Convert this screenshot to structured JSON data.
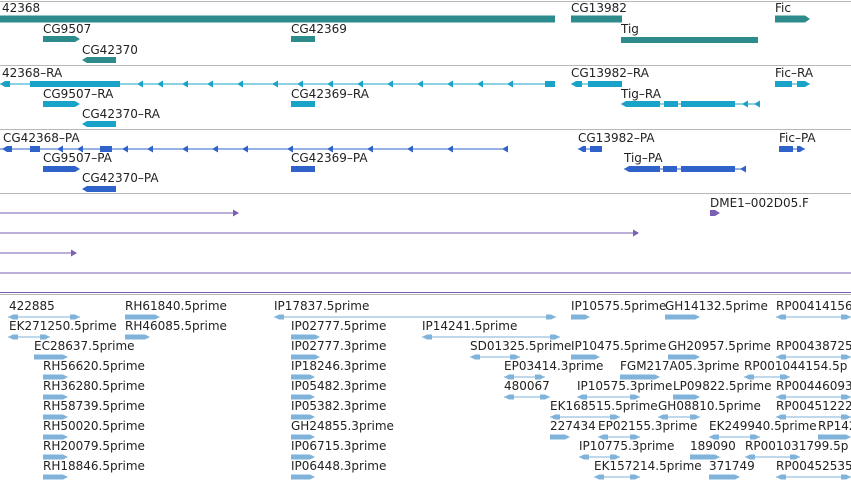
{
  "colors": {
    "gene": "#2e8b8b",
    "transcript": "#1aa3c8",
    "protein": "#2f63c9",
    "clone": "#7a5fb5",
    "est": "#7fb3d9",
    "divider": "#b8b8b8"
  },
  "tracks": {
    "genes": {
      "features": [
        {
          "label": "42368"
        },
        {
          "label": "CG9507"
        },
        {
          "label": "CG42370"
        },
        {
          "label": "CG42369"
        },
        {
          "label": "CG13982"
        },
        {
          "label": "Tig"
        },
        {
          "label": "Fic"
        }
      ]
    },
    "transcripts": {
      "features": [
        {
          "label": "42368–RA"
        },
        {
          "label": "CG9507–RA"
        },
        {
          "label": "CG42370–RA"
        },
        {
          "label": "CG42369–RA"
        },
        {
          "label": "CG13982–RA"
        },
        {
          "label": "Tig–RA"
        },
        {
          "label": "Fic–RA"
        }
      ]
    },
    "proteins": {
      "features": [
        {
          "label": "CG42368–PA"
        },
        {
          "label": "CG9507–PA"
        },
        {
          "label": "CG42370–PA"
        },
        {
          "label": "CG42369–PA"
        },
        {
          "label": "CG13982–PA"
        },
        {
          "label": "Tig–PA"
        },
        {
          "label": "Fic–PA"
        }
      ]
    },
    "clones": {
      "features": [
        {
          "label": "DME1–002D05.F"
        }
      ]
    },
    "ests": {
      "features": [
        {
          "label": "422885"
        },
        {
          "label": "RH61840.5prime"
        },
        {
          "label": "IP17837.5prime"
        },
        {
          "label": "IP10575.5prime"
        },
        {
          "label": "GH14132.5prime"
        },
        {
          "label": "RP00414156"
        },
        {
          "label": "EK271250.5prime"
        },
        {
          "label": "RH46085.5prime"
        },
        {
          "label": "IP02777.5prime"
        },
        {
          "label": "IP14241.5prime"
        },
        {
          "label": "EC28637.5prime"
        },
        {
          "label": "IP02777.3prime"
        },
        {
          "label": "SD01325.5prime"
        },
        {
          "label": "IP10475.5prime"
        },
        {
          "label": "GH20957.5prime"
        },
        {
          "label": "RP00438725"
        },
        {
          "label": "RH56620.5prime"
        },
        {
          "label": "IP18246.3prime"
        },
        {
          "label": "EP03414.3prime"
        },
        {
          "label": "FGM217A05.3prime"
        },
        {
          "label": "RP001044154.5p"
        },
        {
          "label": "RH36280.5prime"
        },
        {
          "label": "IP05482.3prime"
        },
        {
          "label": "480067"
        },
        {
          "label": "IP10575.3prime"
        },
        {
          "label": "LP09822.5prime"
        },
        {
          "label": "RP00446093"
        },
        {
          "label": "RH58739.5prime"
        },
        {
          "label": "IP05382.3prime"
        },
        {
          "label": "EK168515.5prime"
        },
        {
          "label": "GH08810.5prime"
        },
        {
          "label": "RP00451222"
        },
        {
          "label": "RH50020.5prime"
        },
        {
          "label": "GH24855.3prime"
        },
        {
          "label": "227434"
        },
        {
          "label": "EP02155.3prime"
        },
        {
          "label": "EK249940.5prime"
        },
        {
          "label": "RP142"
        },
        {
          "label": "RH20079.5prime"
        },
        {
          "label": "IP06715.3prime"
        },
        {
          "label": "IP10775.3prime"
        },
        {
          "label": "189090"
        },
        {
          "label": "RP001031799.5p"
        },
        {
          "label": "RH18846.5prime"
        },
        {
          "label": "IP06448.3prime"
        },
        {
          "label": "EK157214.5prime"
        },
        {
          "label": "371749"
        },
        {
          "label": "RP00452535"
        }
      ]
    }
  }
}
